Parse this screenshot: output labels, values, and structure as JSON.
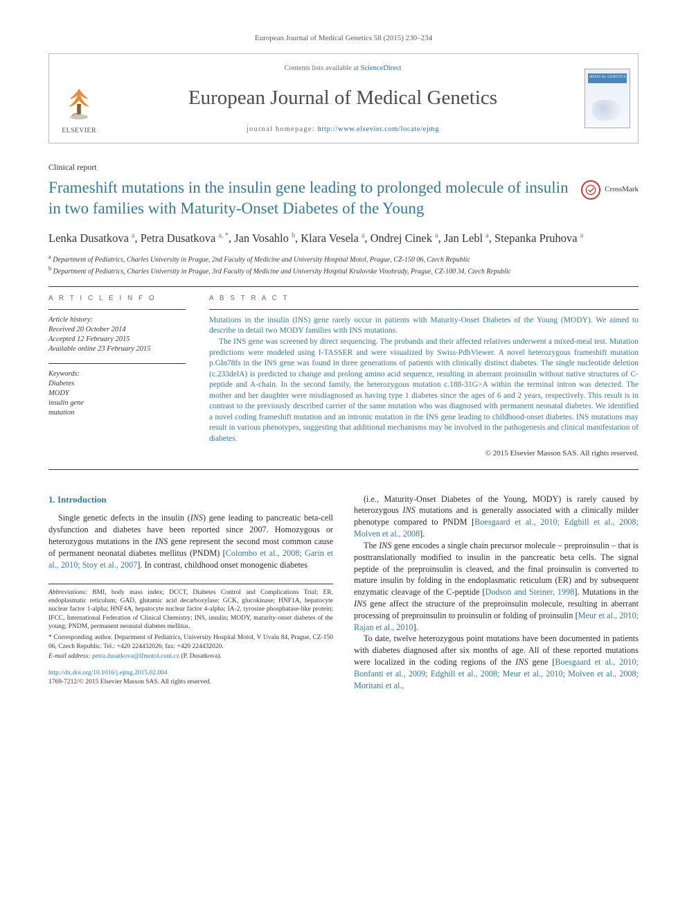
{
  "citation": "European Journal of Medical Genetics 58 (2015) 230–234",
  "masthead": {
    "contents_prefix": "Contents lists available at ",
    "contents_link": "ScienceDirect",
    "journal": "European Journal of Medical Genetics",
    "homepage_prefix": "journal homepage: ",
    "homepage_url": "http://www.elsevier.com/locate/ejmg",
    "publisher": "ELSEVIER",
    "cover_label": "MEDICAL GENETICS"
  },
  "doc_type": "Clinical report",
  "title": "Frameshift mutations in the insulin gene leading to prolonged molecule of insulin in two families with Maturity-Onset Diabetes of the Young",
  "crossmark": "CrossMark",
  "authors_html": "Lenka Dusatkova <sup>a</sup>, Petra Dusatkova <sup>a, *</sup>, Jan Vosahlo <sup>b</sup>, Klara Vesela <sup>a</sup>, Ondrej Cinek <sup>a</sup>, Jan Lebl <sup>a</sup>, Stepanka Pruhova <sup>a</sup>",
  "affiliations": {
    "a": "Department of Pediatrics, Charles University in Prague, 2nd Faculty of Medicine and University Hospital Motol, Prague, CZ-150 06, Czech Republic",
    "b": "Department of Pediatrics, Charles University in Prague, 3rd Faculty of Medicine and University Hospital Kralovske Vinohrady, Prague, CZ-100 34, Czech Republic"
  },
  "article_info_head": "A R T I C L E   I N F O",
  "abstract_head": "A B S T R A C T",
  "history": {
    "label": "Article history:",
    "received": "Received 20 October 2014",
    "accepted": "Accepted 12 February 2015",
    "online": "Available online 23 February 2015"
  },
  "keywords": {
    "label": "Keywords:",
    "items": [
      "Diabetes",
      "MODY",
      "insulin gene",
      "mutation"
    ]
  },
  "abstract": {
    "p1": "Mutations in the insulin (INS) gene rarely occur in patients with Maturity-Onset Diabetes of the Young (MODY). We aimed to describe in detail two MODY families with INS mutations.",
    "p2": "The INS gene was screened by direct sequencing. The probands and their affected relatives underwent a mixed-meal test. Mutation predictions were modeled using I-TASSER and were visualized by Swiss-PdbViewer. A novel heterozygous frameshift mutation p.Gln78fs in the INS gene was found in three generations of patients with clinically distinct diabetes. The single nucleotide deletion (c.233delA) is predicted to change and prolong amino acid sequence, resulting in aberrant proinsulin without native structures of C-peptide and A-chain. In the second family, the heterozygous mutation c.188-31G>A within the terminal intron was detected. The mother and her daughter were misdiagnosed as having type 1 diabetes since the ages of 6 and 2 years, respectively. This result is in contrast to the previously described carrier of the same mutation who was diagnosed with permanent neonatal diabetes. We identified a novel coding frameshift mutation and an intronic mutation in the INS gene leading to childhood-onset diabetes. INS mutations may result in various phenotypes, suggesting that additional mechanisms may be involved in the pathogenesis and clinical manifestation of diabetes."
  },
  "copyright": "© 2015 Elsevier Masson SAS. All rights reserved.",
  "intro_head": "1. Introduction",
  "intro": {
    "p1a": "Single genetic defects in the insulin (",
    "p1b": ") gene leading to pancreatic beta-cell dysfunction and diabetes have been reported since 2007. Homozygous or heterozygous mutations in the ",
    "p1c": " gene represent the second most common cause of permanent neonatal diabetes mellitus (PNDM) [",
    "p1_refs": "Colombo et al., 2008; Garin et al., 2010; Stoy et al., 2007",
    "p1d": "]. In contrast, childhood onset monogenic diabetes ",
    "p2a": "(i.e., Maturity-Onset Diabetes of the Young, MODY) is rarely caused by heterozygous ",
    "p2b": " mutations and is generally associated with a clinically milder phenotype compared to PNDM [",
    "p2_refs": "Boesgaard et al., 2010; Edghill et al., 2008; Molven et al., 2008",
    "p2c": "].",
    "p3a": "The ",
    "p3b": " gene encodes a single chain precursor molecule – preproinsulin – that is posttranslationally modified to insulin in the pancreatic beta cells. The signal peptide of the preproinsulin is cleaved, and the final proinsulin is converted to mature insulin by folding in the endoplasmatic reticulum (ER) and by subsequent enzymatic cleavage of the C-peptide [",
    "p3_ref": "Dodson and Steiner, 1998",
    "p3c": "]. Mutations in the ",
    "p3d": " gene affect the structure of the preproinsulin molecule, resulting in aberrant processing of preproinsulin to proinsulin or folding of proinsulin [",
    "p3_refs2": "Meur et al., 2010; Rajan et al., 2010",
    "p3e": "].",
    "p4a": "To date, twelve heterozygous point mutations have been documented in patients with diabetes diagnosed after six months of age. All of these reported mutations were localized in the coding regions of the ",
    "p4b": " gene [",
    "p4_refs": "Boesgaard et al., 2010; Bonfanti et al., 2009; Edghill et al., 2008; Meur et al., 2010; Molven et al., 2008; Moritani et al.,"
  },
  "abbrev": {
    "label": "Abbreviations:",
    "text": " BMI, body mass index; DCCT, Diabetes Control and Complications Trial; ER, endoplasmatic reticulum; GAD, glutamic acid decarboxylase; GCK, glucokinase; HNF1A, hepatocyte nuclear factor 1-alpha; HNF4A, hepatocyte nuclear factor 4-alpha; IA-2, tyrosine phosphatase-like protein; IFCC, International Federation of Clinical Chemistry; INS, insulin; MODY, maturity-onset diabetes of the young; PNDM, permanent neonatal diabetes mellitus."
  },
  "corresponding": "* Corresponding author. Department of Pediatrics, University Hospital Motol, V Uvalu 84, Prague, CZ-150 06, Czech Republic. Tel.: +420 224432026; fax: +420 224432020.",
  "email_label": "E-mail address:",
  "email": "petra.dusatkova@lfmotol.cuni.cz",
  "email_who": " (P. Dusatkova).",
  "doi_line": "http://dx.doi.org/10.1016/j.ejmg.2015.02.004",
  "issn_line": "1769-7212/© 2015 Elsevier Masson SAS. All rights reserved.",
  "colors": {
    "link": "#2f7a9d",
    "text": "#2a2a2a",
    "rule": "#333333",
    "border": "#bcbcbc"
  }
}
